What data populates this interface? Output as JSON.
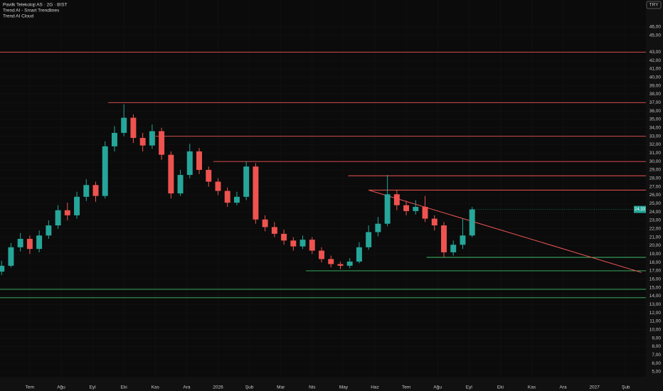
{
  "chart_data": {
    "type": "candlestick",
    "title": "Pavilk Telekoloji AS · 2G · BIST",
    "indicators": [
      "Trend AI - Smart Trendlines",
      "Trend AI Cloud"
    ],
    "currency": "TRY",
    "last_price_label": "24,33",
    "up_color": "#26a69a",
    "down_color": "#ef5350",
    "x": [
      -0.9,
      -0.6,
      -0.3,
      0,
      0.3,
      0.6,
      0.9,
      1.2,
      1.5,
      1.8,
      2.1,
      2.4,
      2.7,
      3,
      3.3,
      3.6,
      3.9,
      4.2,
      4.5,
      4.8,
      5.1,
      5.4,
      5.7,
      6,
      6.3,
      6.6,
      6.9,
      7.2,
      7.5,
      7.8,
      8.1,
      8.4,
      8.7,
      9,
      9.3,
      9.6,
      9.9,
      10.2,
      10.5,
      10.8,
      11.1,
      11.4,
      11.7,
      12,
      12.3,
      12.6,
      12.9,
      13.2,
      13.5,
      13.8,
      14.1
    ],
    "open": [
      16.9,
      17.6,
      19.8,
      20.8,
      19.6,
      21.2,
      22.4,
      24.2,
      23.6,
      25.8,
      27.2,
      25.9,
      31.8,
      33.4,
      35.2,
      32.8,
      31.9,
      33.6,
      30.8,
      26.2,
      28.4,
      31.2,
      29.0,
      27.6,
      26.5,
      25.1,
      25.8,
      29.4,
      23.1,
      22.2,
      21.4,
      20.6,
      19.9,
      20.7,
      19.4,
      18.4,
      17.8,
      17.6,
      18.1,
      19.8,
      21.6,
      22.6,
      26.1,
      24.8,
      24.1,
      24.6,
      23.2,
      22.4,
      19.2,
      20.1,
      21.2
    ],
    "high": [
      18.2,
      20.3,
      21.5,
      21.2,
      21.8,
      23.0,
      24.8,
      25.1,
      26.4,
      27.9,
      27.6,
      32.4,
      34.2,
      36.8,
      35.6,
      33.4,
      34.4,
      34.0,
      31.2,
      29.0,
      32.1,
      31.6,
      29.4,
      28.0,
      26.9,
      26.4,
      30.0,
      29.8,
      23.6,
      22.8,
      21.9,
      21.0,
      21.2,
      21.0,
      19.8,
      18.8,
      18.1,
      18.5,
      20.4,
      22.4,
      23.4,
      28.4,
      26.6,
      25.3,
      25.4,
      25.9,
      23.6,
      22.8,
      20.6,
      23.2,
      24.6
    ],
    "low": [
      16.5,
      17.4,
      19.3,
      19.0,
      19.2,
      20.8,
      22.0,
      23.0,
      23.2,
      25.3,
      25.2,
      25.6,
      31.2,
      33.0,
      32.2,
      31.2,
      31.5,
      30.2,
      25.6,
      25.9,
      28.0,
      28.5,
      27.0,
      26.0,
      24.6,
      24.8,
      25.4,
      22.6,
      21.7,
      21.0,
      20.1,
      19.4,
      19.6,
      19.0,
      18.0,
      17.4,
      17.2,
      17.3,
      17.9,
      19.5,
      21.1,
      22.3,
      24.2,
      23.6,
      23.7,
      22.8,
      21.8,
      18.6,
      18.8,
      19.6,
      21.0
    ],
    "close": [
      17.6,
      19.8,
      20.8,
      19.6,
      21.2,
      22.4,
      24.2,
      23.6,
      25.8,
      27.2,
      25.9,
      31.8,
      33.4,
      35.2,
      32.8,
      31.9,
      33.6,
      30.8,
      26.2,
      28.4,
      31.2,
      29.0,
      27.6,
      26.5,
      25.1,
      25.8,
      29.4,
      23.1,
      22.2,
      21.4,
      20.6,
      19.9,
      20.7,
      19.4,
      18.4,
      17.8,
      17.6,
      18.1,
      19.8,
      21.6,
      22.6,
      26.1,
      24.8,
      24.1,
      24.6,
      23.2,
      22.4,
      19.2,
      20.1,
      21.2,
      24.3
    ],
    "levels": [
      {
        "value": 43.0,
        "from": -0.95,
        "color": "#f05454"
      },
      {
        "value": 37.0,
        "from": 2.5,
        "color": "#f05454"
      },
      {
        "value": 33.0,
        "from": 4.0,
        "color": "#f05454"
      },
      {
        "value": 30.0,
        "from": 5.85,
        "color": "#f05454"
      },
      {
        "value": 28.3,
        "from": 10.15,
        "color": "#f05454"
      },
      {
        "value": 26.6,
        "from": 10.8,
        "color": "#f05454"
      },
      {
        "value": 18.6,
        "from": 12.65,
        "color": "#3fbf6a"
      },
      {
        "value": 17.0,
        "from": 8.8,
        "color": "#3fbf6a"
      },
      {
        "value": 14.8,
        "from": -0.95,
        "color": "#3fbf6a"
      },
      {
        "value": 13.8,
        "from": -0.95,
        "color": "#3fbf6a"
      }
    ],
    "trendline": {
      "x": [
        10.8,
        19.5
      ],
      "y": [
        26.6,
        16.8
      ],
      "color": "#f05454"
    },
    "xlim": [
      -0.95,
      19.64
    ],
    "ylim": [
      4.4,
      49.2
    ],
    "xticks": [
      {
        "value": 0,
        "label": "Tem"
      },
      {
        "value": 1,
        "label": "Ağu"
      },
      {
        "value": 2,
        "label": "Eyl"
      },
      {
        "value": 3,
        "label": "Eki"
      },
      {
        "value": 4,
        "label": "Kas"
      },
      {
        "value": 5,
        "label": "Ara"
      },
      {
        "value": 6,
        "label": "2026"
      },
      {
        "value": 7,
        "label": "Şub"
      },
      {
        "value": 8,
        "label": "Mar"
      },
      {
        "value": 9,
        "label": "Nis"
      },
      {
        "value": 10,
        "label": "May"
      },
      {
        "value": 11,
        "label": "Haz"
      },
      {
        "value": 12,
        "label": "Tem"
      },
      {
        "value": 13,
        "label": "Ağu"
      },
      {
        "value": 14,
        "label": "Eyl"
      },
      {
        "value": 15,
        "label": "Eki"
      },
      {
        "value": 16,
        "label": "Kas"
      },
      {
        "value": 17,
        "label": "Ara"
      },
      {
        "value": 18,
        "label": "2027"
      },
      {
        "value": 19,
        "label": "Şub"
      }
    ],
    "yticks": [
      {
        "value": 46,
        "label": "46,00"
      },
      {
        "value": 45,
        "label": "45,00"
      },
      {
        "value": 43,
        "label": "43,00"
      },
      {
        "value": 42,
        "label": "42,00"
      },
      {
        "value": 41,
        "label": "41,00"
      },
      {
        "value": 40,
        "label": "40,00"
      },
      {
        "value": 39,
        "label": "39,00"
      },
      {
        "value": 38,
        "label": "38,00"
      },
      {
        "value": 37,
        "label": "37,00"
      },
      {
        "value": 36,
        "label": "36,00"
      },
      {
        "value": 35,
        "label": "35,00"
      },
      {
        "value": 34,
        "label": "34,00"
      },
      {
        "value": 33,
        "label": "33,00"
      },
      {
        "value": 32,
        "label": "32,00"
      },
      {
        "value": 31,
        "label": "31,00"
      },
      {
        "value": 30,
        "label": "30,00"
      },
      {
        "value": 29,
        "label": "29,00"
      },
      {
        "value": 28,
        "label": "28,00"
      },
      {
        "value": 27,
        "label": "27,00"
      },
      {
        "value": 26,
        "label": "26,00"
      },
      {
        "value": 25,
        "label": "25,00"
      },
      {
        "value": 24,
        "label": "24,00"
      },
      {
        "value": 23,
        "label": "23,00"
      },
      {
        "value": 22,
        "label": "22,00"
      },
      {
        "value": 21,
        "label": "21,00"
      },
      {
        "value": 20,
        "label": "20,00"
      },
      {
        "value": 19,
        "label": "19,00"
      },
      {
        "value": 18,
        "label": "18,00"
      },
      {
        "value": 17,
        "label": "17,00"
      },
      {
        "value": 16,
        "label": "16,00"
      },
      {
        "value": 15,
        "label": "15,00"
      },
      {
        "value": 14,
        "label": "14,00"
      },
      {
        "value": 13,
        "label": "13,00"
      },
      {
        "value": 12,
        "label": "12,00"
      },
      {
        "value": 11,
        "label": "11,00"
      },
      {
        "value": 10,
        "label": "10,00"
      },
      {
        "value": 9,
        "label": "9,00"
      },
      {
        "value": 8,
        "label": "8,00"
      },
      {
        "value": 7,
        "label": "7,00"
      },
      {
        "value": 6,
        "label": "6,00"
      },
      {
        "value": 5,
        "label": "5,00"
      }
    ]
  }
}
